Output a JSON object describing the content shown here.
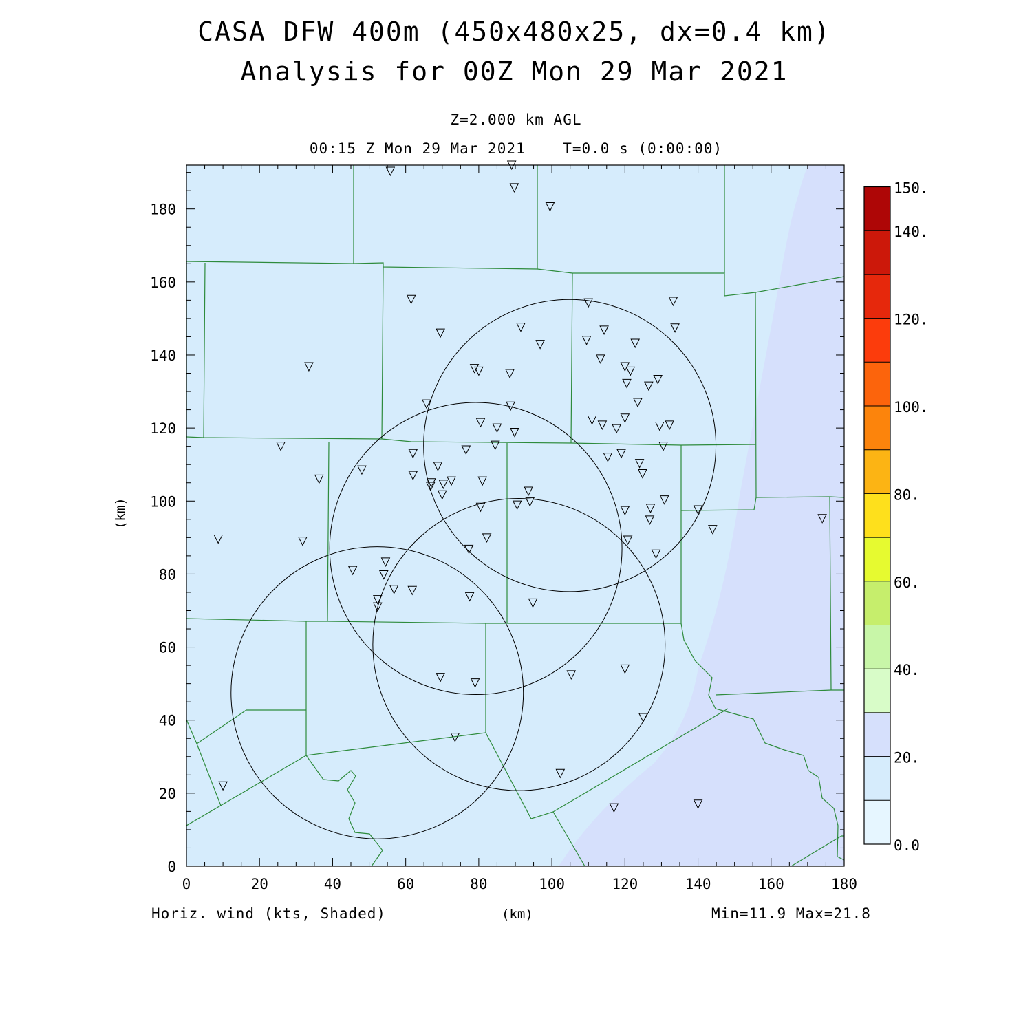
{
  "title": {
    "line1": "CASA DFW 400m (450x480x25, dx=0.4 km)",
    "line2": "Analysis for 00Z Mon 29 Mar 2021"
  },
  "subtitle": {
    "level": "Z=2.000 km AGL",
    "valid": "00:15 Z Mon 29 Mar 2021    T=0.0 s (0:00:00)"
  },
  "footer": {
    "variable": "Horiz. wind (kts, Shaded)",
    "xunit": "(km)",
    "minmax": "Min=11.9 Max=21.8"
  },
  "yaxis_label": "(km)",
  "chart_data": {
    "type": "heatmap",
    "xlabel": "(km)",
    "ylabel": "(km)",
    "xlim": [
      0,
      180
    ],
    "ylim": [
      0,
      192
    ],
    "xticks": [
      0,
      20,
      40,
      60,
      80,
      100,
      120,
      140,
      160,
      180
    ],
    "yticks": [
      0,
      20,
      40,
      60,
      80,
      100,
      120,
      140,
      160,
      180
    ],
    "min": 11.9,
    "max": 21.8,
    "colorbar": {
      "levels": [
        0,
        10,
        20,
        30,
        40,
        50,
        60,
        70,
        80,
        90,
        100,
        110,
        120,
        130,
        140,
        150
      ],
      "labels": [
        "0.0",
        "20.",
        "40.",
        "60.",
        "80.",
        "100.",
        "120.",
        "140.",
        "150."
      ],
      "colors": [
        "#e6f6ff",
        "#d6ecfc",
        "#d6e0fc",
        "#d8fcc8",
        "#c8f6a8",
        "#c6ee6c",
        "#e6fa30",
        "#fee01c",
        "#fcb414",
        "#fc840c",
        "#fc640c",
        "#fc3c0c",
        "#e6280c",
        "#cc180a",
        "#ae0606"
      ]
    },
    "radar_rings": [
      {
        "cx": 104.9,
        "cy": 115.2,
        "r": 40
      },
      {
        "cx": 79.2,
        "cy": 87.0,
        "r": 40
      },
      {
        "cx": 91.0,
        "cy": 60.7,
        "r": 40
      },
      {
        "cx": 52.2,
        "cy": 47.5,
        "r": 40
      }
    ],
    "stations": [
      [
        55.8,
        190.3
      ],
      [
        89.0,
        192.0
      ],
      [
        89.7,
        185.8
      ],
      [
        99.5,
        180.6
      ],
      [
        61.5,
        155.2
      ],
      [
        110.0,
        154.3
      ],
      [
        133.2,
        154.7
      ],
      [
        69.5,
        146.0
      ],
      [
        91.5,
        147.6
      ],
      [
        114.3,
        146.8
      ],
      [
        133.7,
        147.4
      ],
      [
        96.8,
        142.9
      ],
      [
        109.5,
        144.0
      ],
      [
        122.8,
        143.2
      ],
      [
        113.3,
        138.9
      ],
      [
        33.5,
        136.8
      ],
      [
        78.8,
        136.3
      ],
      [
        80.0,
        135.6
      ],
      [
        88.5,
        134.9
      ],
      [
        120.0,
        136.8
      ],
      [
        121.5,
        135.6
      ],
      [
        120.5,
        132.2
      ],
      [
        126.5,
        131.5
      ],
      [
        129.0,
        133.3
      ],
      [
        65.7,
        126.6
      ],
      [
        88.7,
        126.0
      ],
      [
        123.5,
        127.0
      ],
      [
        80.5,
        121.5
      ],
      [
        111.0,
        122.2
      ],
      [
        113.8,
        120.8
      ],
      [
        117.7,
        119.8
      ],
      [
        120.0,
        122.7
      ],
      [
        129.5,
        120.5
      ],
      [
        132.2,
        120.8
      ],
      [
        85.0,
        120.0
      ],
      [
        89.8,
        118.8
      ],
      [
        84.5,
        115.3
      ],
      [
        130.5,
        115.0
      ],
      [
        25.8,
        115.0
      ],
      [
        62.0,
        113.0
      ],
      [
        76.5,
        114.0
      ],
      [
        115.3,
        112.0
      ],
      [
        119.0,
        113.0
      ],
      [
        68.8,
        109.5
      ],
      [
        124.0,
        110.3
      ],
      [
        124.8,
        107.5
      ],
      [
        48.0,
        108.5
      ],
      [
        36.3,
        106.0
      ],
      [
        62.0,
        107.0
      ],
      [
        66.8,
        104.0
      ],
      [
        67.0,
        105.0
      ],
      [
        70.3,
        104.6
      ],
      [
        72.5,
        105.5
      ],
      [
        81.0,
        105.5
      ],
      [
        70.0,
        101.7
      ],
      [
        93.6,
        102.7
      ],
      [
        94.0,
        99.8
      ],
      [
        90.5,
        98.9
      ],
      [
        80.5,
        98.3
      ],
      [
        127.0,
        98.0
      ],
      [
        120.0,
        97.4
      ],
      [
        130.8,
        100.3
      ],
      [
        140.0,
        97.6
      ],
      [
        126.8,
        94.8
      ],
      [
        144.0,
        92.2
      ],
      [
        174.0,
        95.2
      ],
      [
        8.7,
        89.6
      ],
      [
        31.8,
        89.0
      ],
      [
        82.2,
        89.9
      ],
      [
        120.8,
        89.3
      ],
      [
        77.3,
        86.8
      ],
      [
        128.5,
        85.5
      ],
      [
        45.5,
        81.0
      ],
      [
        54.5,
        83.3
      ],
      [
        54.0,
        79.8
      ],
      [
        56.8,
        75.8
      ],
      [
        61.8,
        75.5
      ],
      [
        52.3,
        73.0
      ],
      [
        52.3,
        71.0
      ],
      [
        77.5,
        73.8
      ],
      [
        94.8,
        72.1
      ],
      [
        69.5,
        51.7
      ],
      [
        79.0,
        50.2
      ],
      [
        105.3,
        52.4
      ],
      [
        120.0,
        54.0
      ],
      [
        125.0,
        40.7
      ],
      [
        73.5,
        35.3
      ],
      [
        102.3,
        25.4
      ],
      [
        10.0,
        22.0
      ],
      [
        117.0,
        16.0
      ],
      [
        140.0,
        17.0
      ]
    ]
  }
}
